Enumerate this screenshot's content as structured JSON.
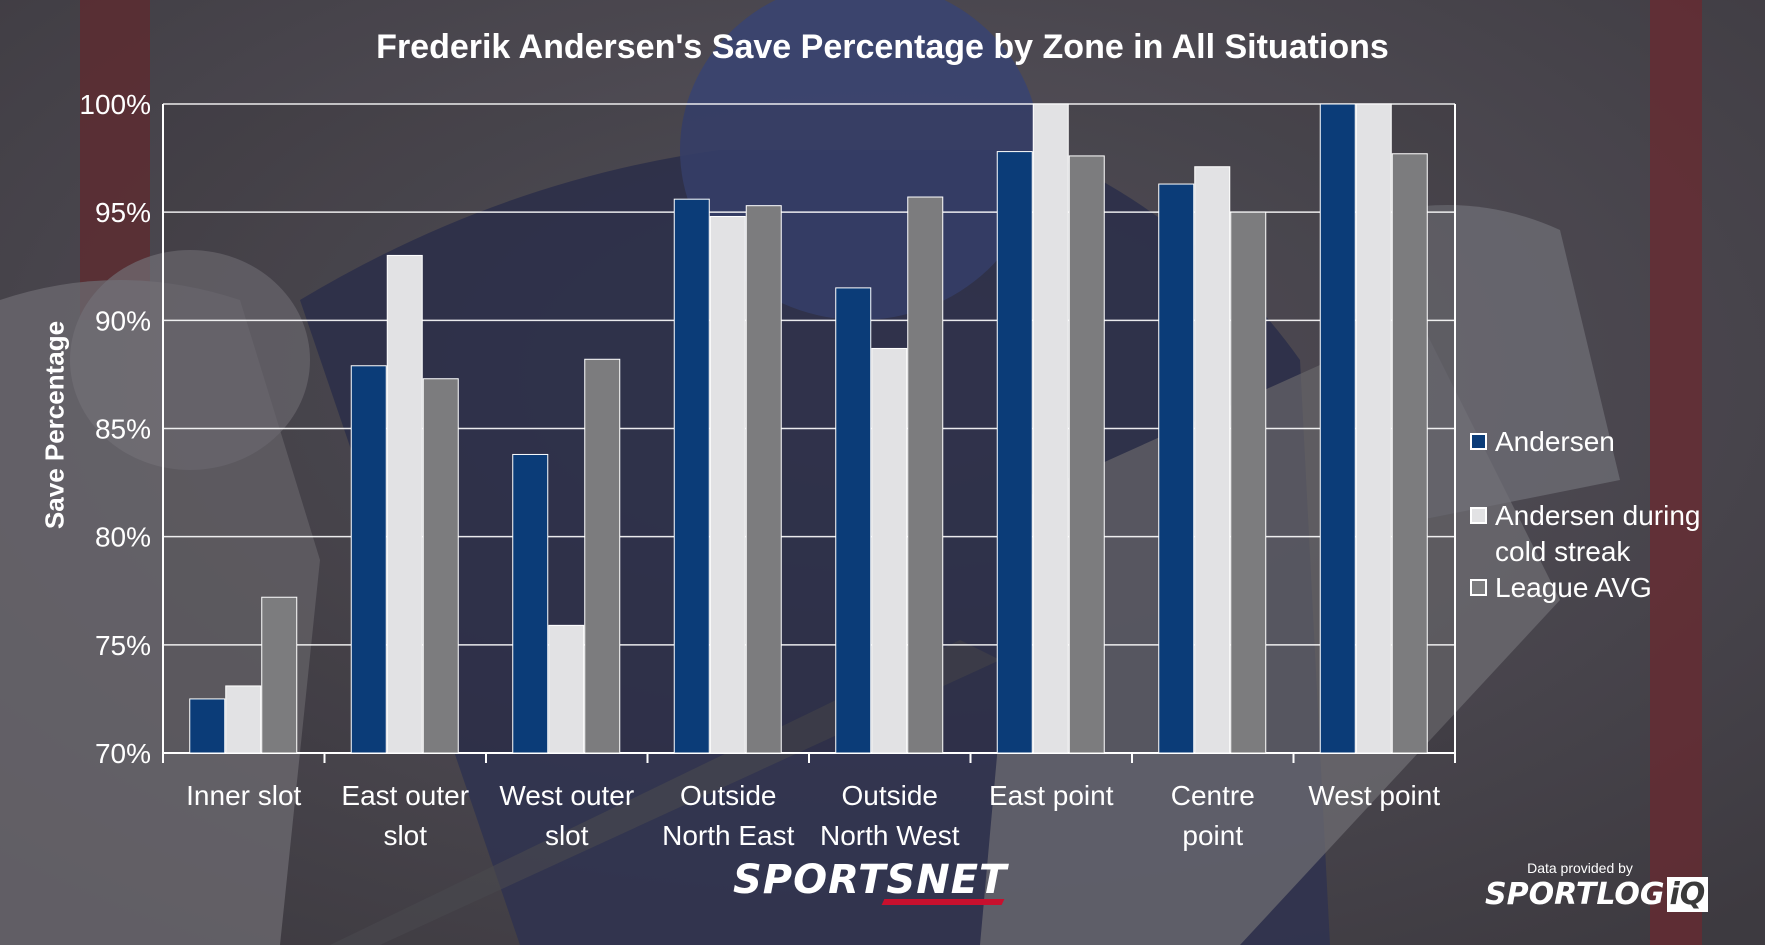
{
  "chart_data": {
    "type": "bar",
    "title": "Frederik Andersen's Save Percentage by Zone in All Situations",
    "ylabel": "Save Percentage",
    "xlabel": "",
    "ylim": [
      70,
      100
    ],
    "yticks": [
      "70%",
      "75%",
      "80%",
      "85%",
      "90%",
      "95%",
      "100%"
    ],
    "ytick_values": [
      70,
      75,
      80,
      85,
      90,
      95,
      100
    ],
    "grid": true,
    "legend_position": "right",
    "categories": [
      [
        "Inner slot"
      ],
      [
        "East outer",
        "slot"
      ],
      [
        "West outer",
        "slot"
      ],
      [
        "Outside",
        "North East"
      ],
      [
        "Outside",
        "North West"
      ],
      [
        "East point"
      ],
      [
        "Centre",
        "point"
      ],
      [
        "West point"
      ]
    ],
    "series": [
      {
        "name": "Andersen",
        "color": "#0b3c78",
        "values": [
          72.5,
          87.9,
          83.8,
          95.6,
          91.5,
          97.8,
          96.3,
          100.0
        ]
      },
      {
        "name": "Andersen during cold streak",
        "color": "#e2e2e4",
        "values": [
          73.1,
          93.0,
          75.9,
          94.8,
          88.7,
          100.0,
          97.1,
          100.0
        ]
      },
      {
        "name": "League AVG",
        "color": "#7c7c7e",
        "values": [
          77.2,
          87.3,
          88.2,
          95.3,
          95.7,
          97.6,
          95.0,
          97.7
        ]
      }
    ]
  },
  "legend": [
    {
      "label": "Andersen",
      "color": "#0b3c78"
    },
    {
      "label": "Andersen during cold streak",
      "color": "#e2e2e4"
    },
    {
      "label": "League AVG",
      "color": "#7c7c7e"
    }
  ],
  "brand": {
    "name": "SPORTSNET"
  },
  "credit": {
    "provided_by": "Data provided by",
    "provider_main": "SPORTLOG",
    "provider_tail": "iQ"
  }
}
